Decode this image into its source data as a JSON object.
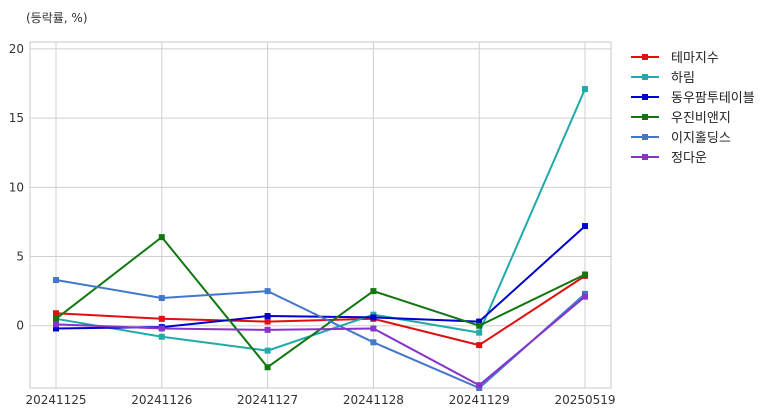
{
  "chart_data": {
    "type": "line",
    "unit_label": "(등락률, %)",
    "categories": [
      "20241125",
      "20241126",
      "20241127",
      "20241128",
      "20241129",
      "20250519"
    ],
    "ylim": [
      -4.5,
      20.5
    ],
    "yticks": [
      0,
      5,
      10,
      15,
      20
    ],
    "grid": true,
    "legend_position": "right-top",
    "series": [
      {
        "name": "테마지수",
        "color": "#dd1111",
        "values": [
          0.9,
          0.5,
          0.3,
          0.5,
          -1.4,
          3.6
        ]
      },
      {
        "name": "하림",
        "color": "#22aaaa",
        "values": [
          0.5,
          -0.8,
          -1.8,
          0.8,
          -0.5,
          17.1
        ]
      },
      {
        "name": "동우팜투테이블",
        "color": "#0000cc",
        "values": [
          -0.2,
          -0.1,
          0.7,
          0.6,
          0.3,
          7.2
        ]
      },
      {
        "name": "우진비앤지",
        "color": "#117711",
        "values": [
          0.5,
          6.4,
          -3.0,
          2.5,
          0.0,
          3.7
        ]
      },
      {
        "name": "이지홀딩스",
        "color": "#4477cc",
        "values": [
          3.3,
          2.0,
          2.5,
          -1.2,
          -4.5,
          2.3
        ]
      },
      {
        "name": "정다운",
        "color": "#8833cc",
        "values": [
          0.1,
          -0.2,
          -0.3,
          -0.2,
          -4.3,
          2.1
        ]
      }
    ]
  }
}
